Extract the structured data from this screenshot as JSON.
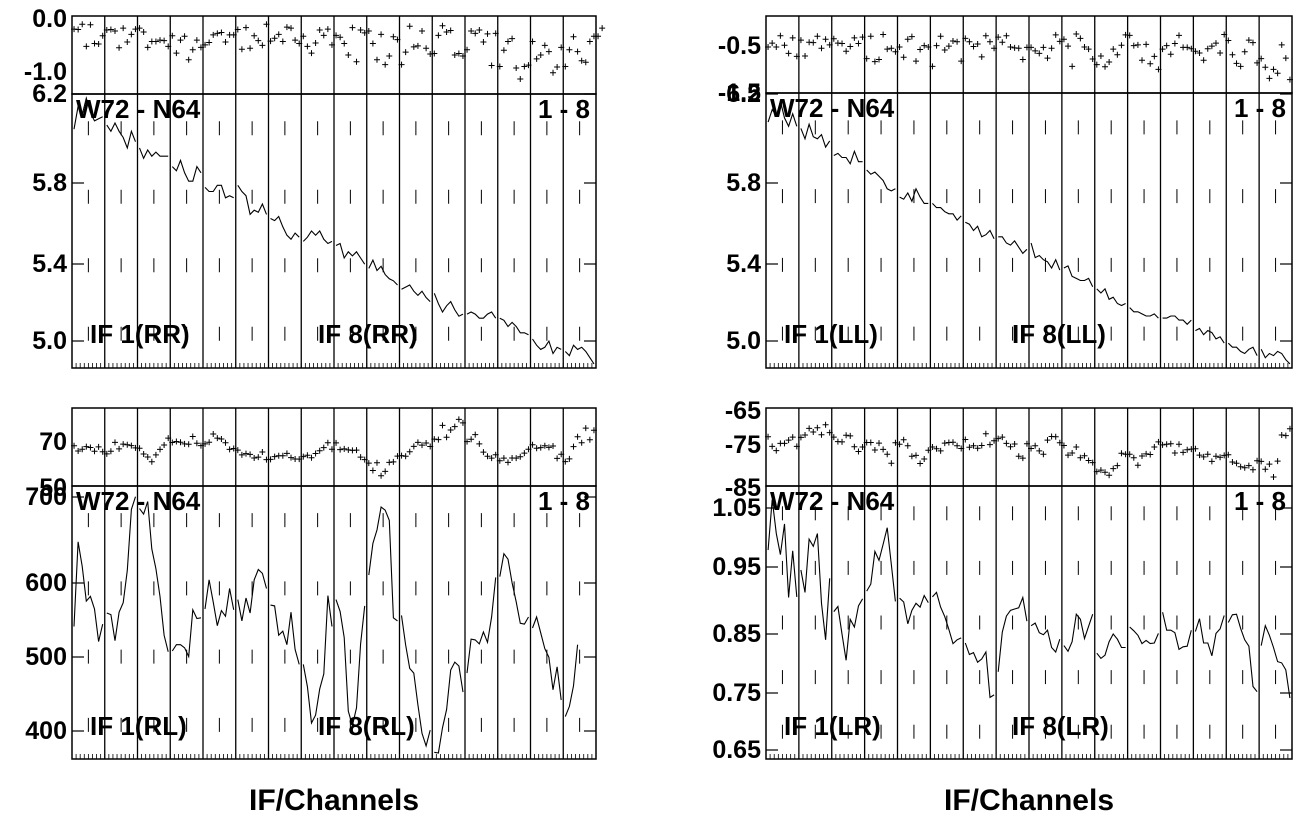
{
  "chart_data": [
    {
      "type": "line",
      "baseline": "W72 - N64",
      "if_range": "1 - 8",
      "xlabel": "IF/Channels",
      "if_labels": [
        "IF 1(RR)",
        "IF 8(RR)"
      ],
      "phase_ticks": [
        "0.0",
        "-1.0"
      ],
      "phase_range": [
        -1.5,
        0.0
      ],
      "amp_ticks": [
        "6.2",
        "5.8",
        "5.4",
        "5.0"
      ],
      "amp_range": [
        4.95,
        6.25
      ],
      "n_channels": 128,
      "phase": [
        -0.21,
        -0.22,
        -0.11,
        -0.57,
        -0.12,
        -0.51,
        -0.52,
        -0.35,
        -0.23,
        -0.22,
        -0.25,
        -0.6,
        -0.19,
        -0.48,
        -0.32,
        -0.21,
        -0.19,
        -0.27,
        -0.59,
        -0.47,
        -0.47,
        -0.44,
        -0.45,
        -0.57,
        -0.35,
        -0.71,
        -0.44,
        -0.36,
        -0.85,
        -0.64,
        -0.44,
        -0.59,
        -0.54,
        -0.49,
        -0.33,
        -0.3,
        -0.28,
        -0.48,
        -0.33,
        -0.33,
        -0.22,
        -0.63,
        -0.18,
        -0.61,
        -0.35,
        -0.45,
        -0.55,
        -0.11,
        -0.46,
        -0.4,
        -0.32,
        -0.47,
        -0.17,
        -0.19,
        -0.44,
        -0.51,
        -0.36,
        -0.57,
        -0.71,
        -0.5,
        -0.23,
        -0.34,
        -0.21,
        -0.54,
        -0.34,
        -0.38,
        -0.51,
        -0.75,
        -0.18,
        -0.89,
        -0.23,
        -0.29,
        -0.25,
        -0.51,
        -0.85,
        -0.32,
        -0.95,
        -0.77,
        -0.37,
        -0.43,
        -0.95,
        -0.69,
        -0.15,
        -0.58,
        -0.56,
        -0.25,
        -0.61,
        -0.73,
        -0.72,
        -0.34,
        -0.14,
        -0.27,
        -0.24,
        -0.75,
        -0.72,
        -0.77,
        -0.64,
        -0.25,
        -0.3,
        -0.23,
        -0.48,
        -0.31,
        -0.97,
        -0.3,
        -0.99,
        -0.65,
        -0.47,
        -0.41,
        -1.02,
        -1.25,
        -0.99,
        -0.96,
        -0.47,
        -0.83,
        -0.75,
        -0.55,
        -0.68,
        -1.12,
        -1.0,
        -0.59,
        -0.99,
        -0.64,
        -0.37,
        -0.68,
        -0.87,
        -0.9,
        -0.47,
        -0.36,
        -0.36,
        -0.19
      ],
      "amplitude": [
        6.09,
        6.2,
        6.16,
        6.24,
        6.17,
        6.13,
        6.14,
        6.15,
        6.11,
        6.08,
        6.12,
        6.08,
        6.05,
        6.0,
        6.08,
        6.03,
        6.0,
        5.95,
        5.99,
        5.96,
        5.98,
        5.96,
        5.96,
        5.96,
        5.91,
        5.89,
        5.94,
        5.88,
        5.84,
        5.84,
        5.91,
        5.88,
        5.81,
        5.79,
        5.79,
        5.82,
        5.82,
        5.76,
        5.77,
        5.76,
        5.82,
        5.79,
        5.77,
        5.68,
        5.7,
        5.69,
        5.73,
        5.68,
        5.66,
        5.65,
        5.67,
        5.62,
        5.58,
        5.56,
        5.59,
        5.57,
        5.55,
        5.57,
        5.6,
        5.58,
        5.6,
        5.56,
        5.54,
        5.55,
        5.53,
        5.54,
        5.47,
        5.5,
        5.48,
        5.5,
        5.47,
        5.44,
        5.42,
        5.46,
        5.41,
        5.43,
        5.39,
        5.37,
        5.36,
        5.34,
        5.32,
        5.33,
        5.34,
        5.31,
        5.29,
        5.31,
        5.28,
        5.26,
        5.3,
        5.25,
        5.21,
        5.24,
        5.26,
        5.22,
        5.19,
        5.2,
        5.2,
        5.21,
        5.2,
        5.18,
        5.18,
        5.2,
        5.21,
        5.18,
        5.18,
        5.17,
        5.14,
        5.16,
        5.14,
        5.11,
        5.11,
        5.1,
        5.08,
        5.05,
        5.03,
        5.04,
        5.07,
        5.01,
        5.04,
        5.03,
        5.02,
        5.0,
        5.05,
        5.03,
        5.04,
        5.02,
        4.99,
        4.96
      ]
    },
    {
      "type": "line",
      "baseline": "W72 - N64",
      "if_range": "1 - 8",
      "xlabel": "IF/Channels",
      "if_labels": [
        "IF 1(LL)",
        "IF 8(LL)"
      ],
      "phase_ticks": [
        "-0.5",
        "-1.5"
      ],
      "phase_range": [
        -1.6,
        0.05
      ],
      "amp_ticks": [
        "6.2",
        "5.8",
        "5.4",
        "5.0"
      ],
      "amp_range": [
        4.95,
        6.25
      ],
      "n_channels": 128,
      "phase": [
        -0.6,
        -0.51,
        -0.6,
        -0.34,
        -0.56,
        -0.75,
        -0.39,
        -0.82,
        -0.44,
        -0.81,
        -0.49,
        -0.5,
        -0.35,
        -0.63,
        -0.42,
        -0.55,
        -0.41,
        -0.51,
        -0.52,
        -0.7,
        -0.59,
        -0.39,
        -0.52,
        -0.37,
        -0.87,
        -0.35,
        -0.94,
        -0.89,
        -0.31,
        -0.65,
        -0.63,
        -0.71,
        -0.6,
        -0.84,
        -0.42,
        -0.36,
        -0.93,
        -0.66,
        -0.57,
        -0.6,
        -1.05,
        -0.57,
        -0.35,
        -0.67,
        -0.58,
        -0.46,
        -0.48,
        -0.93,
        -0.4,
        -0.48,
        -0.59,
        -0.53,
        -0.83,
        -0.34,
        -0.48,
        -0.63,
        -0.37,
        -0.49,
        -0.34,
        -0.6,
        -0.62,
        -0.63,
        -0.89,
        -0.61,
        -0.61,
        -0.69,
        -0.75,
        -0.61,
        -0.86,
        -0.63,
        -0.32,
        -0.47,
        -0.42,
        -0.58,
        -1.05,
        -0.3,
        -0.4,
        -0.6,
        -0.65,
        -0.88,
        -1.01,
        -0.81,
        -1.06,
        -0.95,
        -0.65,
        -0.78,
        -0.56,
        -0.32,
        -0.33,
        -0.57,
        -0.55,
        -0.91,
        -0.54,
        -0.99,
        -0.82,
        -1.12,
        -0.65,
        -0.57,
        -0.77,
        -0.52,
        -0.33,
        -0.61,
        -0.61,
        -0.64,
        -0.7,
        -0.74,
        -0.91,
        -0.64,
        -0.58,
        -0.51,
        -0.74,
        -0.31,
        -0.45,
        -0.78,
        -0.98,
        -1.05,
        -0.71,
        -0.44,
        -0.5,
        -0.97,
        -0.87,
        -1.07,
        -1.33,
        -1.12,
        -1.21,
        -0.55,
        -0.86,
        -1.36
      ],
      "amplitude": [
        6.12,
        6.18,
        6.15,
        6.22,
        6.14,
        6.1,
        6.16,
        6.1,
        6.09,
        6.04,
        6.11,
        6.05,
        6.04,
        6.06,
        6.0,
        6.03,
        5.96,
        5.97,
        5.95,
        5.95,
        5.92,
        5.98,
        5.93,
        5.93,
        5.89,
        5.87,
        5.88,
        5.86,
        5.84,
        5.8,
        5.79,
        5.8,
        5.76,
        5.75,
        5.78,
        5.74,
        5.8,
        5.76,
        5.73,
        5.73,
        5.73,
        5.71,
        5.71,
        5.69,
        5.68,
        5.68,
        5.65,
        5.67,
        5.64,
        5.63,
        5.6,
        5.62,
        5.57,
        5.58,
        5.6,
        5.56,
        5.57,
        5.57,
        5.54,
        5.53,
        5.55,
        5.52,
        5.49,
        5.51,
        5.54,
        5.47,
        5.48,
        5.46,
        5.45,
        5.42,
        5.46,
        5.41,
        5.42,
        5.43,
        5.38,
        5.37,
        5.36,
        5.36,
        5.37,
        5.33,
        5.32,
        5.3,
        5.32,
        5.27,
        5.28,
        5.25,
        5.24,
        5.25,
        5.23,
        5.21,
        5.21,
        5.2,
        5.19,
        5.19,
        5.2,
        5.18,
        5.18,
        5.18,
        5.19,
        5.19,
        5.17,
        5.17,
        5.15,
        5.17,
        5.12,
        5.13,
        5.1,
        5.12,
        5.11,
        5.08,
        5.09,
        5.06,
        5.06,
        5.04,
        5.04,
        5.02,
        5.01,
        5.03,
        5.04,
        5.0,
        5.03,
        4.99,
        5.01,
        5.0,
        5.02,
        5.01,
        4.98,
        4.96
      ]
    },
    {
      "type": "line",
      "baseline": "W72 - N64",
      "if_range": "1 - 8",
      "xlabel": "IF/Channels",
      "if_labels": [
        "IF 1(RL)",
        "IF 8(RL)"
      ],
      "phase_ticks": [
        "70",
        "50"
      ],
      "phase_range": [
        48,
        90
      ],
      "amp_ticks": [
        "700",
        "600",
        "500",
        "400"
      ],
      "amp_range": [
        370,
        710
      ],
      "n_channels": 128,
      "phase": [
        69.7,
        66.7,
        67.7,
        69.2,
        68.7,
        66.5,
        69.1,
        66.2,
        65.0,
        66.5,
        71.7,
        67.9,
        70.7,
        70.3,
        69.8,
        68.5,
        68.3,
        64.9,
        63.2,
        60.4,
        64.4,
        67.6,
        70.2,
        74.2,
        71.6,
        72.2,
        71.8,
        70.8,
        70.6,
        75.1,
        71.2,
        69.8,
        70.8,
        71.8,
        76.6,
        74.2,
        73.7,
        71.5,
        67.6,
        68.1,
        67.2,
        64.4,
        65.1,
        64.7,
        62.6,
        63.1,
        66.1,
        61.6,
        61.8,
        63.4,
        63.9,
        63.9,
        65.3,
        62.8,
        62.0,
        61.9,
        63.4,
        64.2,
        62.7,
        65.2,
        66.8,
        68.6,
        71.5,
        67.7,
        71.4,
        67.5,
        67.9,
        67.3,
        67.0,
        67.2,
        63.1,
        61.6,
        59.6,
        55.3,
        59.8,
        52.2,
        54.8,
        60.0,
        60.3,
        63.7,
        64.0,
        63.6,
        66.2,
        69.4,
        71.7,
        70.1,
        71.3,
        69.3,
        73.6,
        73.3,
        81.6,
        74.7,
        78.9,
        80.9,
        85.1,
        83.1,
        72.1,
        73.5,
        76.2,
        70.8,
        66.0,
        63.6,
        62.5,
        64.5,
        61.0,
        62.5,
        60.0,
        62.6,
        62.5,
        63.3,
        65.4,
        67.7,
        70.3,
        68.3,
        68.6,
        69.7,
        68.8,
        69.6,
        62.4,
        64.8,
        60.5,
        62.1,
        69.2,
        75.0,
        71.5,
        80.0,
        73.2,
        78.8
      ],
      "amplitude": [
        535,
        642,
        611,
        567,
        573,
        557,
        516,
        538,
        552,
        550,
        517,
        553,
        565,
        606,
        683,
        699,
        684,
        677,
        693,
        633,
        608,
        573,
        524,
        503,
        504,
        512,
        512,
        508,
        497,
        556,
        545,
        546,
        557,
        594,
        566,
        536,
        555,
        548,
        583,
        556,
        569,
        542,
        571,
        552,
        594,
        607,
        602,
        583,
        562,
        561,
        524,
        529,
        512,
        553,
        506,
        487,
        487,
        459,
        413,
        423,
        456,
        475,
        574,
        535,
        569,
        554,
        521,
        428,
        410,
        432,
        513,
        561,
        600,
        640,
        657,
        686,
        682,
        669,
        546,
        542,
        549,
        512,
        482,
        476,
        436,
        400,
        384,
        404,
        376,
        375,
        407,
        430,
        480,
        490,
        485,
        452,
        476,
        519,
        518,
        513,
        528,
        515,
        547,
        597,
        598,
        627,
        620,
        590,
        566,
        539,
        538,
        547,
        533,
        547,
        527,
        507,
        496,
        455,
        484,
        442,
        421,
        434,
        460,
        512
      ]
    },
    {
      "type": "line",
      "baseline": "W72 - N64",
      "if_range": "1 - 8",
      "xlabel": "IF/Channels",
      "if_labels": [
        "IF 1(LR)",
        "IF 8(LR)"
      ],
      "phase_ticks": [
        "-65",
        "-75",
        "-85"
      ],
      "phase_range": [
        -86,
        -62
      ],
      "amp_ticks": [
        "1.05",
        "0.95",
        "0.85",
        "0.75",
        "0.65"
      ],
      "amp_range": [
        0.64,
        1.06
      ],
      "n_channels": 128,
      "phase": [
        -70.6,
        -73.8,
        -75.2,
        -72.8,
        -72.8,
        -71.7,
        -70.7,
        -73.8,
        -70.8,
        -70.0,
        -67.8,
        -69.0,
        -67.6,
        -69.9,
        -66.6,
        -69.2,
        -70.7,
        -72.2,
        -72.3,
        -70.1,
        -70.3,
        -73.9,
        -75.5,
        -74.0,
        -72.5,
        -72.5,
        -75.0,
        -72.7,
        -74.8,
        -76.4,
        -79.4,
        -72.6,
        -73.1,
        -71.6,
        -73.6,
        -77.1,
        -76.8,
        -79.5,
        -78.0,
        -75.1,
        -74.0,
        -74.6,
        -75.3,
        -72.7,
        -72.5,
        -72.4,
        -73.6,
        -74.5,
        -71.5,
        -74.1,
        -73.6,
        -74.4,
        -73.5,
        -69.6,
        -73.2,
        -71.9,
        -71.2,
        -70.7,
        -72.8,
        -73.9,
        -73.0,
        -77.1,
        -77.7,
        -72.9,
        -74.5,
        -73.6,
        -75.3,
        -76.4,
        -71.7,
        -70.5,
        -70.6,
        -72.6,
        -73.5,
        -76.7,
        -76.0,
        -74.0,
        -77.6,
        -76.9,
        -78.5,
        -79.2,
        -82.2,
        -81.7,
        -82.4,
        -83.4,
        -81.2,
        -80.2,
        -76.1,
        -76.4,
        -76.4,
        -77.6,
        -80.1,
        -77.0,
        -76.3,
        -76.5,
        -74.0,
        -72.3,
        -73.3,
        -73.1,
        -72.9,
        -76.0,
        -73.1,
        -75.8,
        -74.9,
        -74.7,
        -74.6,
        -76.7,
        -77.3,
        -76.4,
        -78.8,
        -77.1,
        -77.4,
        -76.8,
        -76.6,
        -79.0,
        -79.4,
        -80.6,
        -80.9,
        -80.2,
        -81.6,
        -78.6,
        -78.8,
        -81.4,
        -79.7,
        -84.0,
        -78.7,
        -70.0,
        -70.2,
        -67.9
      ],
      "amplitude": [
        0.963,
        1.042,
        0.989,
        0.956,
        1.004,
        0.889,
        0.962,
        0.89,
        0.932,
        0.897,
        0.98,
        0.969,
        0.989,
        0.88,
        0.823,
        0.919,
        0.867,
        0.875,
        0.832,
        0.791,
        0.855,
        0.843,
        0.876,
        0.887,
        0.899,
        0.91,
        0.961,
        0.947,
        0.972,
        0.998,
        0.941,
        0.883,
        0.888,
        0.882,
        0.848,
        0.869,
        0.88,
        0.874,
        0.892,
        0.881,
        0.89,
        0.897,
        0.874,
        0.859,
        0.839,
        0.817,
        0.823,
        0.826,
        0.818,
        0.8,
        0.803,
        0.788,
        0.793,
        0.804,
        0.733,
        0.737,
        0.773,
        0.835,
        0.86,
        0.869,
        0.871,
        0.873,
        0.889,
        0.852,
        0.845,
        0.849,
        0.834,
        0.831,
        0.838,
        0.811,
        0.804,
        0.824,
        0.814,
        0.805,
        0.82,
        0.863,
        0.855,
        0.825,
        0.844,
        0.863,
        0.802,
        0.794,
        0.799,
        0.82,
        0.832,
        0.824,
        0.811,
        0.811,
        0.843,
        0.837,
        0.83,
        0.817,
        0.822,
        0.817,
        0.818,
        0.833,
        0.866,
        0.838,
        0.838,
        0.834,
        0.808,
        0.812,
        0.813,
        0.838,
        0.836,
        0.856,
        0.818,
        0.818,
        0.798,
        0.833,
        0.84,
        0.861,
        0.85,
        0.862,
        0.863,
        0.841,
        0.823,
        0.813,
        0.75,
        0.742,
        0.814,
        0.845,
        0.83,
        0.811,
        0.789,
        0.787,
        0.776,
        0.732
      ]
    }
  ]
}
